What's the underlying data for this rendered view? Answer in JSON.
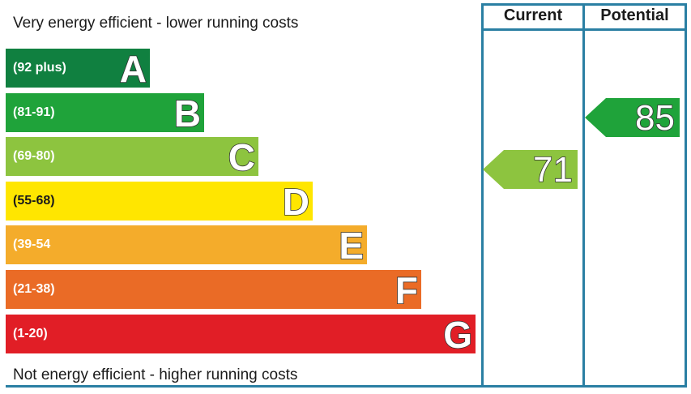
{
  "chart_data": {
    "type": "epc-rating",
    "title_top": "Very energy efficient - lower running costs",
    "title_bottom": "Not energy efficient - higher running costs",
    "columns": [
      "Current",
      "Potential"
    ],
    "bands": [
      {
        "letter": "A",
        "range": "(92 plus)",
        "color": "#108040"
      },
      {
        "letter": "B",
        "range": "(81-91)",
        "color": "#1fa33a"
      },
      {
        "letter": "C",
        "range": "(69-80)",
        "color": "#8dc43f"
      },
      {
        "letter": "D",
        "range": "(55-68)",
        "color": "#ffe600"
      },
      {
        "letter": "E",
        "range": "(39-54",
        "color": "#f4ac2b"
      },
      {
        "letter": "F",
        "range": "(21-38)",
        "color": "#ea6b26"
      },
      {
        "letter": "G",
        "range": "(1-20)",
        "color": "#e11e26"
      }
    ],
    "current": {
      "value": 71,
      "band": "C",
      "color": "#8dc43f"
    },
    "potential": {
      "value": 85,
      "band": "B",
      "color": "#1fa33a"
    }
  }
}
